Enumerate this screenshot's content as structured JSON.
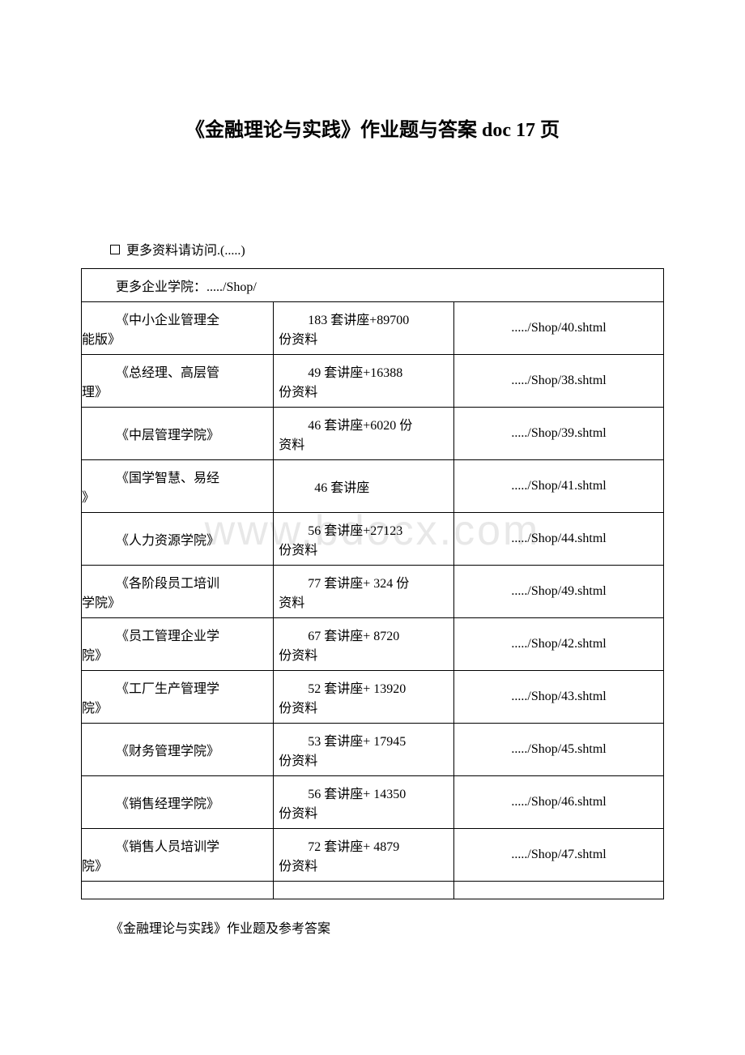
{
  "title": "《金融理论与实践》作业题与答案 doc 17 页",
  "intro": " 更多资料请访问.(.....)",
  "watermark": "www.bdocx.com",
  "table": {
    "header": "更多企业学院：...../Shop/",
    "rows": [
      {
        "name_l1": "《中小企业管理全",
        "name_l2": "能版》",
        "desc_l1": "183 套讲座+89700",
        "desc_l2": "份资料",
        "link": "...../Shop/40.shtml"
      },
      {
        "name_l1": "《总经理、高层管",
        "name_l2": "理》",
        "desc_l1": "49 套讲座+16388",
        "desc_l2": "份资料",
        "link": "...../Shop/38.shtml"
      },
      {
        "name_l1": "《中层管理学院》",
        "name_l2": "",
        "desc_l1": "46 套讲座+6020 份",
        "desc_l2": "资料",
        "link": "...../Shop/39.shtml"
      },
      {
        "name_l1": "《国学智慧、易经",
        "name_l2": "》",
        "desc_l1": "46 套讲座",
        "desc_l2": "",
        "link": "...../Shop/41.shtml"
      },
      {
        "name_l1": "《人力资源学院》",
        "name_l2": "",
        "desc_l1": "56 套讲座+27123",
        "desc_l2": "份资料",
        "link": "...../Shop/44.shtml"
      },
      {
        "name_l1": "《各阶段员工培训",
        "name_l2": "学院》",
        "desc_l1": "77 套讲座+ 324 份",
        "desc_l2": "资料",
        "link": "...../Shop/49.shtml"
      },
      {
        "name_l1": "《员工管理企业学",
        "name_l2": "院》",
        "desc_l1": "67 套讲座+ 8720",
        "desc_l2": "份资料",
        "link": "...../Shop/42.shtml"
      },
      {
        "name_l1": "《工厂生产管理学",
        "name_l2": "院》",
        "desc_l1": "52 套讲座+ 13920",
        "desc_l2": "份资料",
        "link": "...../Shop/43.shtml"
      },
      {
        "name_l1": "《财务管理学院》",
        "name_l2": "",
        "desc_l1": "53 套讲座+ 17945",
        "desc_l2": "份资料",
        "link": "...../Shop/45.shtml"
      },
      {
        "name_l1": "《销售经理学院》",
        "name_l2": "",
        "desc_l1": "56 套讲座+ 14350",
        "desc_l2": "份资料",
        "link": "...../Shop/46.shtml"
      },
      {
        "name_l1": "《销售人员培训学",
        "name_l2": "院》",
        "desc_l1": "72 套讲座+ 4879",
        "desc_l2": "份资料",
        "link": "...../Shop/47.shtml"
      }
    ]
  },
  "footer": "《金融理论与实践》作业题及参考答案",
  "colors": {
    "background": "#ffffff",
    "text": "#000000",
    "border": "#000000",
    "watermark": "#e8e8e8"
  },
  "typography": {
    "title_fontsize": 24,
    "body_fontsize": 16,
    "watermark_fontsize": 52,
    "font_family": "SimSun"
  }
}
